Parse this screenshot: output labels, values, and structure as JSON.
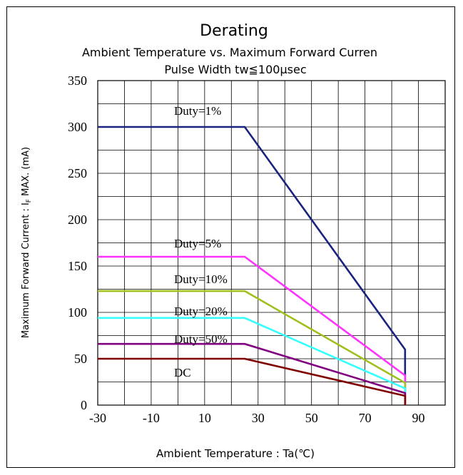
{
  "chart_data": {
    "type": "line",
    "title": "Derating",
    "subtitle_1": "Ambient Temperature vs. Maximum Forward Curren",
    "subtitle_2": "Pulse Width tw≦100μsec",
    "xlabel": "Ambient Temperature : Ta(℃)",
    "ylabel_prefix": "Maximum Forward Current : I",
    "ylabel_sub": "F",
    "ylabel_suffix": " MAX. (mA)",
    "xlim": [
      -30,
      100
    ],
    "ylim": [
      0,
      350
    ],
    "x_ticks": [
      -30,
      -10,
      10,
      30,
      50,
      70,
      90
    ],
    "y_ticks": [
      0,
      50,
      100,
      150,
      200,
      250,
      300,
      350
    ],
    "x_grid": [
      -30,
      -20,
      -10,
      0,
      10,
      20,
      30,
      40,
      50,
      60,
      70,
      80,
      90,
      100
    ],
    "y_grid": [
      0,
      25,
      50,
      75,
      100,
      125,
      150,
      175,
      200,
      225,
      250,
      275,
      300,
      325,
      350
    ],
    "grid": true,
    "series": [
      {
        "name": "Duty=1%",
        "color": "#1a237e",
        "points": [
          [
            -30,
            300
          ],
          [
            25,
            300
          ],
          [
            85,
            60
          ],
          [
            85,
            0
          ]
        ]
      },
      {
        "name": "Duty=5%",
        "color": "#ff33ff",
        "points": [
          [
            -30,
            160
          ],
          [
            25,
            160
          ],
          [
            85,
            32
          ],
          [
            85,
            0
          ]
        ]
      },
      {
        "name": "Duty=10%",
        "color": "#a0c020",
        "points": [
          [
            -30,
            123
          ],
          [
            25,
            123
          ],
          [
            85,
            24
          ],
          [
            85,
            0
          ]
        ]
      },
      {
        "name": "Duty=20%",
        "color": "#33ffff",
        "points": [
          [
            -30,
            94
          ],
          [
            25,
            94
          ],
          [
            85,
            18
          ],
          [
            85,
            0
          ]
        ]
      },
      {
        "name": "Duty=50%",
        "color": "#800080",
        "points": [
          [
            -30,
            66
          ],
          [
            25,
            66
          ],
          [
            85,
            13
          ],
          [
            85,
            0
          ]
        ]
      },
      {
        "name": "DC",
        "color": "#800000",
        "points": [
          [
            -30,
            50
          ],
          [
            25,
            50
          ],
          [
            85,
            10
          ],
          [
            85,
            0
          ]
        ]
      }
    ]
  }
}
